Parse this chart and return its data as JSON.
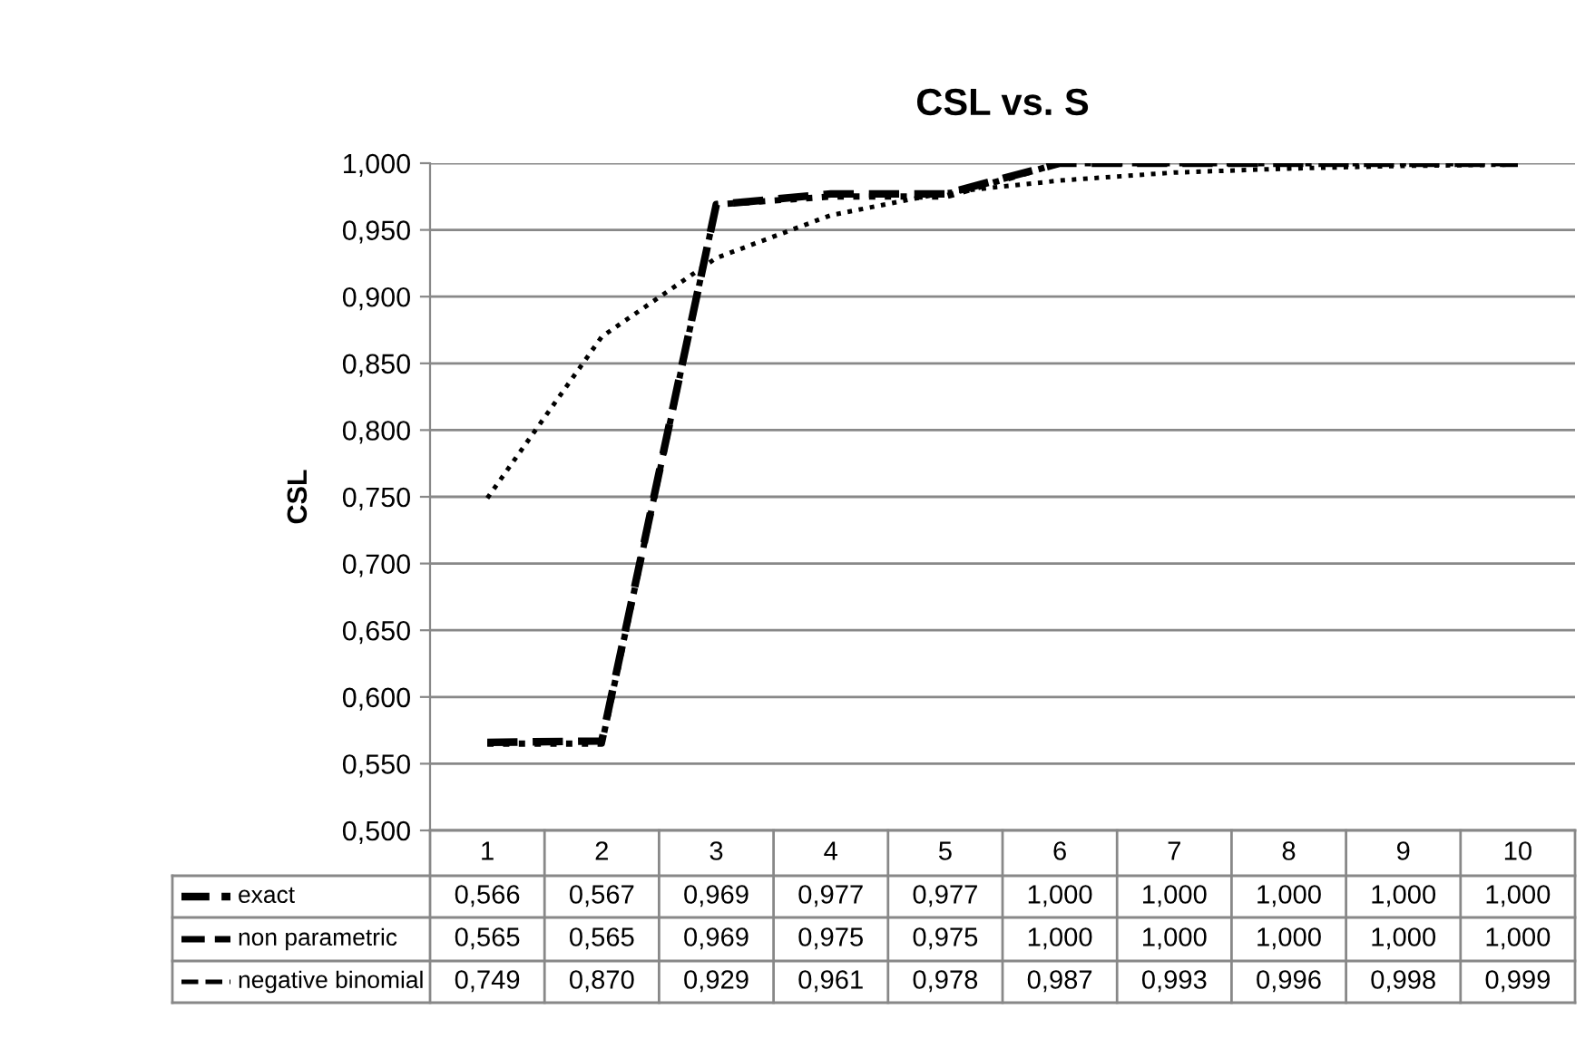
{
  "chart_data": {
    "type": "line",
    "title": "CSL vs. S",
    "ylabel": "CSL",
    "categories": [
      "1",
      "2",
      "3",
      "4",
      "5",
      "6",
      "7",
      "8",
      "9",
      "10"
    ],
    "series": [
      {
        "name": "exact",
        "color": "#000000",
        "line_style": "dashed",
        "values": [
          0.566,
          0.567,
          0.969,
          0.977,
          0.977,
          1.0,
          1.0,
          1.0,
          1.0,
          1.0
        ],
        "value_labels": [
          "0,566",
          "0,567",
          "0,969",
          "0,977",
          "0,977",
          "1,000",
          "1,000",
          "1,000",
          "1,000",
          "1,000"
        ]
      },
      {
        "name": "non parametric",
        "color": "#000000",
        "line_style": "dotted",
        "values": [
          0.565,
          0.565,
          0.969,
          0.975,
          0.975,
          1.0,
          1.0,
          1.0,
          1.0,
          1.0
        ],
        "value_labels": [
          "0,565",
          "0,565",
          "0,969",
          "0,975",
          "0,975",
          "1,000",
          "1,000",
          "1,000",
          "1,000",
          "1,000"
        ]
      },
      {
        "name": "negative binomial",
        "color": "#000000",
        "line_style": "dotted",
        "values": [
          0.749,
          0.87,
          0.929,
          0.961,
          0.978,
          0.987,
          0.993,
          0.996,
          0.998,
          0.999
        ],
        "value_labels": [
          "0,749",
          "0,870",
          "0,929",
          "0,961",
          "0,978",
          "0,987",
          "0,993",
          "0,996",
          "0,998",
          "0,999"
        ]
      }
    ],
    "ylim": [
      0.5,
      1.0
    ],
    "yticks": [
      {
        "value": 0.5,
        "label": "0,500"
      },
      {
        "value": 0.55,
        "label": "0,550"
      },
      {
        "value": 0.6,
        "label": "0,600"
      },
      {
        "value": 0.65,
        "label": "0,650"
      },
      {
        "value": 0.7,
        "label": "0,700"
      },
      {
        "value": 0.75,
        "label": "0,750"
      },
      {
        "value": 0.8,
        "label": "0,800"
      },
      {
        "value": 0.85,
        "label": "0,850"
      },
      {
        "value": 0.9,
        "label": "0,900"
      },
      {
        "value": 0.95,
        "label": "0,950"
      },
      {
        "value": 1.0,
        "label": "1,000"
      }
    ],
    "grid": "y",
    "legend": "bottom",
    "marker": "none"
  }
}
